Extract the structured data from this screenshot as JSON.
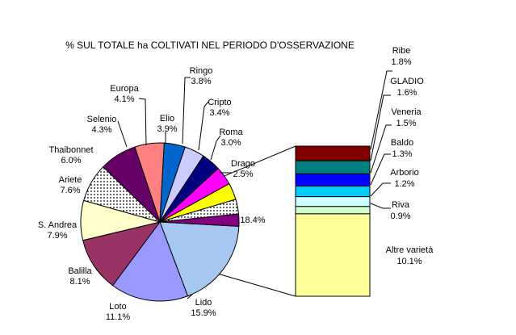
{
  "chart_data": {
    "type": "pie",
    "title": "% SUL TOTALE ha COLTIVATI NEL PERIODO D'OSSERVAZIONE",
    "pie_slices": [
      {
        "label": "18.4%",
        "value": 18.4,
        "color": "#a6c8f0",
        "pattern": "solid"
      },
      {
        "label": "Lido",
        "value": 15.9,
        "color": "#9999ff",
        "pattern": "solid"
      },
      {
        "label": "Loto",
        "value": 11.1,
        "color": "#993366",
        "pattern": "solid"
      },
      {
        "label": "Balilla",
        "value": 8.1,
        "color": "#ffffcc",
        "pattern": "solid"
      },
      {
        "label": "S. Andrea",
        "value": 7.9,
        "color": "#ccffff",
        "pattern": "dots"
      },
      {
        "label": "Ariete",
        "value": 7.6,
        "color": "#660066",
        "pattern": "solid"
      },
      {
        "label": "Thaibonnet",
        "value": 6.0,
        "color": "#ff8080",
        "pattern": "solid"
      },
      {
        "label": "Selenio",
        "value": 4.3,
        "color": "#0066cc",
        "pattern": "solid"
      },
      {
        "label": "Europa",
        "value": 4.1,
        "color": "#ccccff",
        "pattern": "solid"
      },
      {
        "label": "Elio",
        "value": 3.9,
        "color": "#000080",
        "pattern": "solid"
      },
      {
        "label": "Ringo",
        "value": 3.8,
        "color": "#ff00ff",
        "pattern": "solid"
      },
      {
        "label": "Cripto",
        "value": 3.4,
        "color": "#ffff00",
        "pattern": "solid"
      },
      {
        "label": "Roma",
        "value": 3.0,
        "color": "#00ffff",
        "pattern": "dots"
      },
      {
        "label": "Drago",
        "value": 2.5,
        "color": "#800080",
        "pattern": "solid"
      }
    ],
    "breakdown_segments": [
      {
        "label": "Ribe",
        "value": 1.8,
        "color": "#800000"
      },
      {
        "label": "GLADIO",
        "value": 1.6,
        "color": "#008080"
      },
      {
        "label": "Veneria",
        "value": 1.5,
        "color": "#0000ff"
      },
      {
        "label": "Baldo",
        "value": 1.3,
        "color": "#00ccff"
      },
      {
        "label": "Arborio",
        "value": 1.2,
        "color": "#ccffff"
      },
      {
        "label": "Riva",
        "value": 0.9,
        "color": "#ccffcc"
      },
      {
        "label": "Altre varietà",
        "value": 10.1,
        "color": "#ffff99"
      }
    ],
    "value_labels": {
      "first_slice": "18.4%",
      "Lido": "15.9%",
      "Loto": "11.1%",
      "Balilla": "8.1%",
      "S. Andrea": "7.9%",
      "Ariete": "7.6%",
      "Thaibonnet": "6.0%",
      "Selenio": "4.3%",
      "Europa": "4.1%",
      "Elio": "3.9%",
      "Ringo": "3.8%",
      "Cripto": "3.4%",
      "Roma": "3.0%",
      "Drago": "2.5%",
      "Ribe": "1.8%",
      "GLADIO": "1.6%",
      "Veneria": "1.5%",
      "Baldo": "1.3%",
      "Arborio": "1.2%",
      "Riva": "0.9%",
      "Altre varietà": "10.1%"
    }
  }
}
